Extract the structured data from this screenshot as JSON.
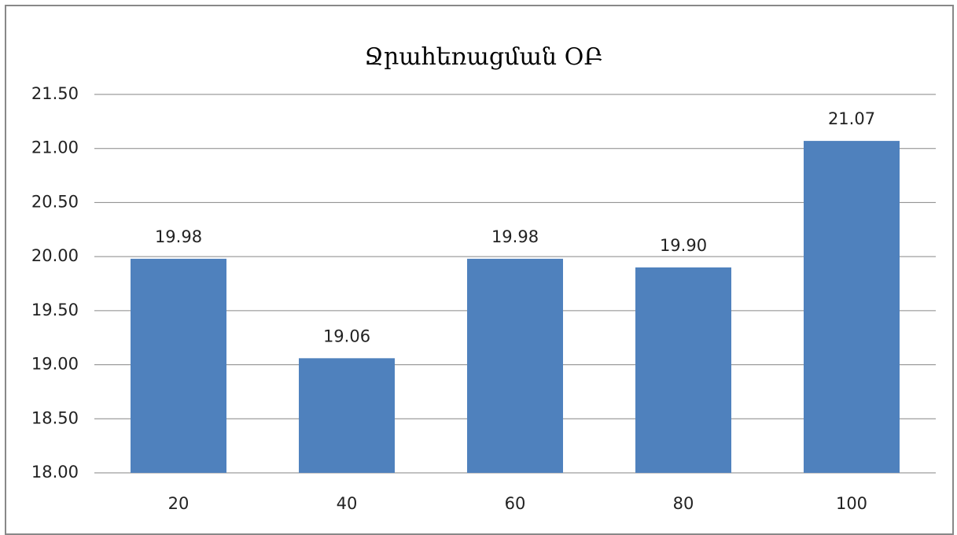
{
  "chart_data": {
    "type": "bar",
    "title": "Ջրահեռացման ՕԲ",
    "categories": [
      "20",
      "40",
      "60",
      "80",
      "100"
    ],
    "values": [
      19.98,
      19.06,
      19.98,
      19.9,
      21.07
    ],
    "value_labels": [
      "19.98",
      "19.06",
      "19.98",
      "19.90",
      "21.07"
    ],
    "color": "#4f81bd",
    "ylim": [
      18,
      21.5
    ],
    "yticks": [
      {
        "value": 18,
        "label": "18.00"
      },
      {
        "value": 18.5,
        "label": "18.50"
      },
      {
        "value": 19,
        "label": "19.00"
      },
      {
        "value": 19.5,
        "label": "19.50"
      },
      {
        "value": 20,
        "label": "20.00"
      },
      {
        "value": 20.5,
        "label": "20.50"
      },
      {
        "value": 21,
        "label": "21.00"
      },
      {
        "value": 21.5,
        "label": "21.50"
      }
    ],
    "grid": true
  }
}
